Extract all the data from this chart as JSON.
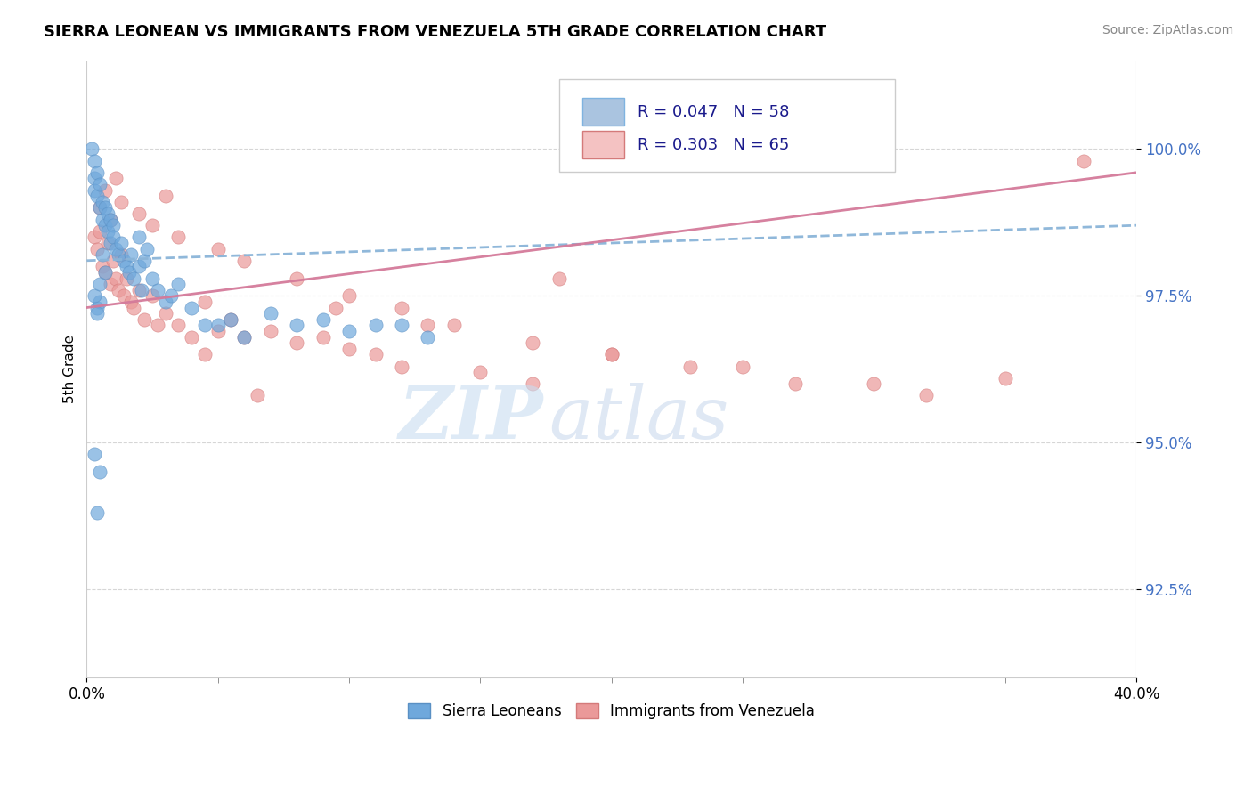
{
  "title": "SIERRA LEONEAN VS IMMIGRANTS FROM VENEZUELA 5TH GRADE CORRELATION CHART",
  "source": "Source: ZipAtlas.com",
  "ylabel": "5th Grade",
  "yticks": [
    92.5,
    95.0,
    97.5,
    100.0
  ],
  "ytick_labels": [
    "92.5%",
    "95.0%",
    "97.5%",
    "100.0%"
  ],
  "xmin": 0.0,
  "xmax": 40.0,
  "ymin": 91.0,
  "ymax": 101.5,
  "blue_color": "#6fa8dc",
  "pink_color": "#ea9999",
  "watermark_zip_color": "#c5d8f0",
  "watermark_atlas_color": "#b8cce8",
  "blue_dot_edge": "#5a90c4",
  "pink_dot_edge": "#d47a7a",
  "sierra_x": [
    0.2,
    0.3,
    0.3,
    0.3,
    0.4,
    0.4,
    0.5,
    0.5,
    0.6,
    0.6,
    0.7,
    0.7,
    0.8,
    0.8,
    0.9,
    0.9,
    1.0,
    1.0,
    1.1,
    1.2,
    1.3,
    1.4,
    1.5,
    1.6,
    1.7,
    1.8,
    2.0,
    2.1,
    2.2,
    2.5,
    2.7,
    3.0,
    3.2,
    3.5,
    4.0,
    4.5,
    5.0,
    5.5,
    6.0,
    7.0,
    8.0,
    9.0,
    10.0,
    11.0,
    12.0,
    13.0,
    2.0,
    2.3,
    0.4,
    0.5,
    0.6,
    0.7,
    0.3,
    0.4,
    0.5,
    0.3,
    0.4,
    0.5
  ],
  "sierra_y": [
    100.0,
    99.8,
    99.5,
    99.3,
    99.6,
    99.2,
    99.4,
    99.0,
    99.1,
    98.8,
    99.0,
    98.7,
    98.9,
    98.6,
    98.8,
    98.4,
    98.7,
    98.5,
    98.3,
    98.2,
    98.4,
    98.1,
    98.0,
    97.9,
    98.2,
    97.8,
    98.0,
    97.6,
    98.1,
    97.8,
    97.6,
    97.4,
    97.5,
    97.7,
    97.3,
    97.0,
    97.0,
    97.1,
    96.8,
    97.2,
    97.0,
    97.1,
    96.9,
    97.0,
    97.0,
    96.8,
    98.5,
    98.3,
    97.3,
    97.4,
    98.2,
    97.9,
    97.5,
    97.2,
    97.7,
    94.8,
    93.8,
    94.5
  ],
  "venezuela_x": [
    0.3,
    0.4,
    0.5,
    0.6,
    0.7,
    0.8,
    0.9,
    1.0,
    1.1,
    1.2,
    1.3,
    1.4,
    1.5,
    1.7,
    1.8,
    2.0,
    2.2,
    2.5,
    2.7,
    3.0,
    3.5,
    4.0,
    4.5,
    5.0,
    5.5,
    6.0,
    7.0,
    8.0,
    9.0,
    10.0,
    11.0,
    12.0,
    15.0,
    17.0,
    20.0,
    25.0,
    30.0,
    35.0,
    38.0,
    0.5,
    0.7,
    0.9,
    1.1,
    1.3,
    2.0,
    2.5,
    3.0,
    3.5,
    5.0,
    6.0,
    8.0,
    10.0,
    12.0,
    14.0,
    17.0,
    20.0,
    23.0,
    27.0,
    32.0,
    4.5,
    6.5,
    9.5,
    13.0,
    18.0
  ],
  "venezuela_y": [
    98.5,
    98.3,
    98.6,
    98.0,
    97.9,
    98.4,
    97.7,
    98.1,
    97.8,
    97.6,
    98.2,
    97.5,
    97.8,
    97.4,
    97.3,
    97.6,
    97.1,
    97.5,
    97.0,
    97.2,
    97.0,
    96.8,
    97.4,
    96.9,
    97.1,
    96.8,
    96.9,
    96.7,
    96.8,
    96.6,
    96.5,
    96.3,
    96.2,
    96.0,
    96.5,
    96.3,
    96.0,
    96.1,
    99.8,
    99.0,
    99.3,
    98.8,
    99.5,
    99.1,
    98.9,
    98.7,
    99.2,
    98.5,
    98.3,
    98.1,
    97.8,
    97.5,
    97.3,
    97.0,
    96.7,
    96.5,
    96.3,
    96.0,
    95.8,
    96.5,
    95.8,
    97.3,
    97.0,
    97.8
  ],
  "trend_blue_x0": 0.0,
  "trend_blue_x1": 40.0,
  "trend_blue_y0": 98.1,
  "trend_blue_y1": 98.7,
  "trend_pink_x0": 0.0,
  "trend_pink_x1": 40.0,
  "trend_pink_y0": 97.3,
  "trend_pink_y1": 99.6
}
